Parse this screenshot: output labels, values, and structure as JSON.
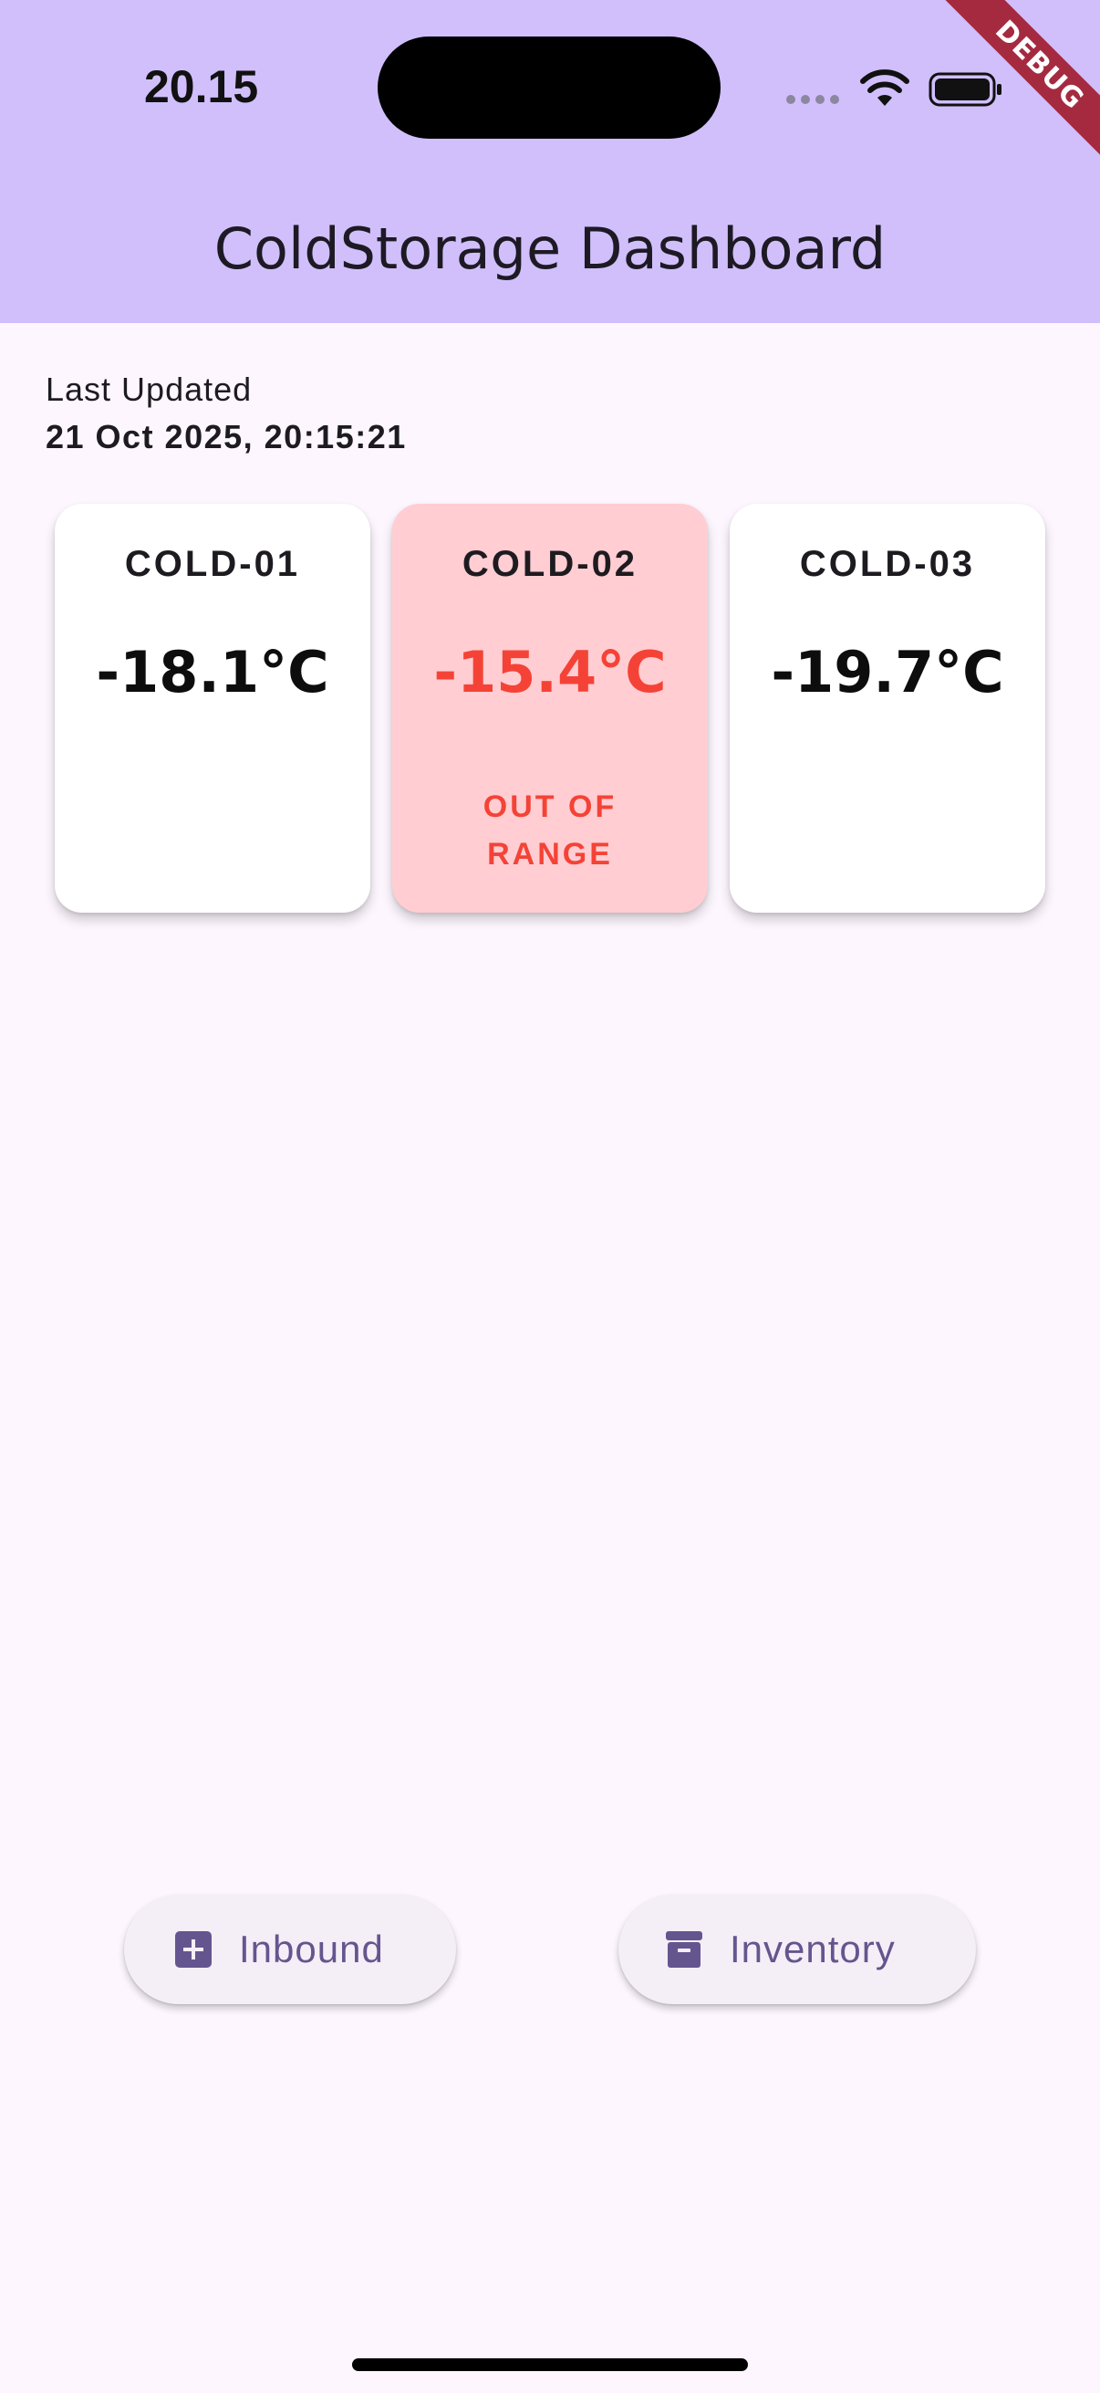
{
  "status_bar": {
    "time": "20.15"
  },
  "debug_banner": "DEBUG",
  "app_bar": {
    "title": "ColdStorage Dashboard",
    "background": "#d1bffc"
  },
  "last_updated": {
    "label": "Last Updated",
    "value": "21 Oct 2025, 20:15:21"
  },
  "units": [
    {
      "name": "COLD-01",
      "temperature": "-18.1°C",
      "status": "",
      "alert": false
    },
    {
      "name": "COLD-02",
      "temperature": "-15.4°C",
      "status": "OUT OF RANGE",
      "alert": true
    },
    {
      "name": "COLD-03",
      "temperature": "-19.7°C",
      "status": "",
      "alert": false
    }
  ],
  "colors": {
    "alert_red": "#f44336",
    "alert_card_bg": "#ffcdd2",
    "button_text": "#65558f"
  },
  "actions": {
    "inbound_label": "Inbound",
    "inbound_icon": "add-box-icon",
    "inventory_label": "Inventory",
    "inventory_icon": "archive-icon"
  }
}
